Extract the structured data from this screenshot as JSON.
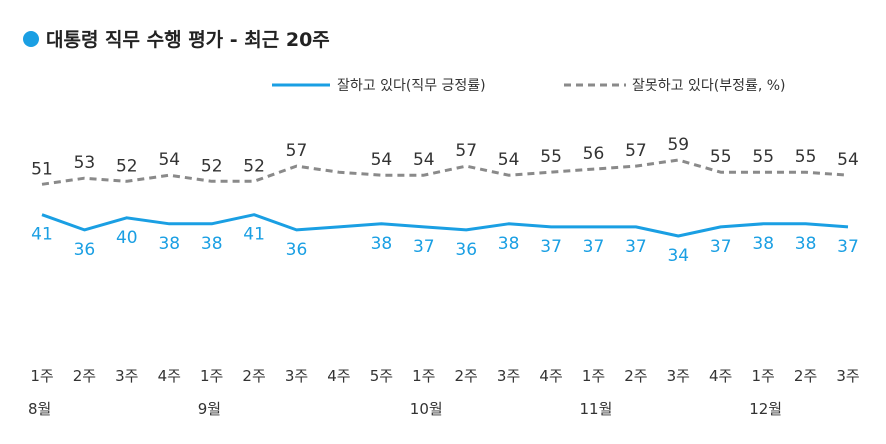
{
  "title": "대통령 직무 수행 평가 - 최근 20주",
  "colors": {
    "positive": "#1a9fe3",
    "negative": "#8a8a8a",
    "title_dot": "#1a9fe3"
  },
  "legend": {
    "positive_label": "잘하고 있다(직무 긍정률)",
    "negative_label": "잘못하고 있다(부정률, %)"
  },
  "chart_data": {
    "type": "line",
    "title": "대통령 직무 수행 평가 - 최근 20주",
    "x": [
      "1주",
      "2주",
      "3주",
      "4주",
      "1주",
      "2주",
      "3주",
      "4주",
      "5주",
      "1주",
      "2주",
      "3주",
      "4주",
      "1주",
      "2주",
      "3주",
      "4주",
      "1주",
      "2주",
      "3주"
    ],
    "months": [
      {
        "label": "8월",
        "index": 0
      },
      {
        "label": "9월",
        "index": 4
      },
      {
        "label": "10월",
        "index": 9
      },
      {
        "label": "11월",
        "index": 13
      },
      {
        "label": "12월",
        "index": 17
      }
    ],
    "series": [
      {
        "name": "잘하고 있다(직무 긍정률)",
        "style": "solid",
        "values": [
          41,
          36,
          40,
          38,
          38,
          41,
          36,
          null,
          38,
          37,
          36,
          38,
          37,
          37,
          37,
          34,
          37,
          38,
          38,
          37
        ],
        "line_values": [
          41,
          36,
          40,
          38,
          38,
          41,
          36,
          37,
          38,
          37,
          36,
          38,
          37,
          37,
          37,
          34,
          37,
          38,
          38,
          37
        ]
      },
      {
        "name": "잘못하고 있다(부정률, %)",
        "style": "dashed",
        "values": [
          51,
          53,
          52,
          54,
          52,
          52,
          57,
          null,
          54,
          54,
          57,
          54,
          55,
          56,
          57,
          59,
          55,
          55,
          55,
          54
        ],
        "line_values": [
          51,
          53,
          52,
          54,
          52,
          52,
          57,
          55,
          54,
          54,
          57,
          54,
          55,
          56,
          57,
          59,
          55,
          55,
          55,
          54
        ]
      }
    ],
    "grid": false,
    "legend_position": "top-right"
  }
}
